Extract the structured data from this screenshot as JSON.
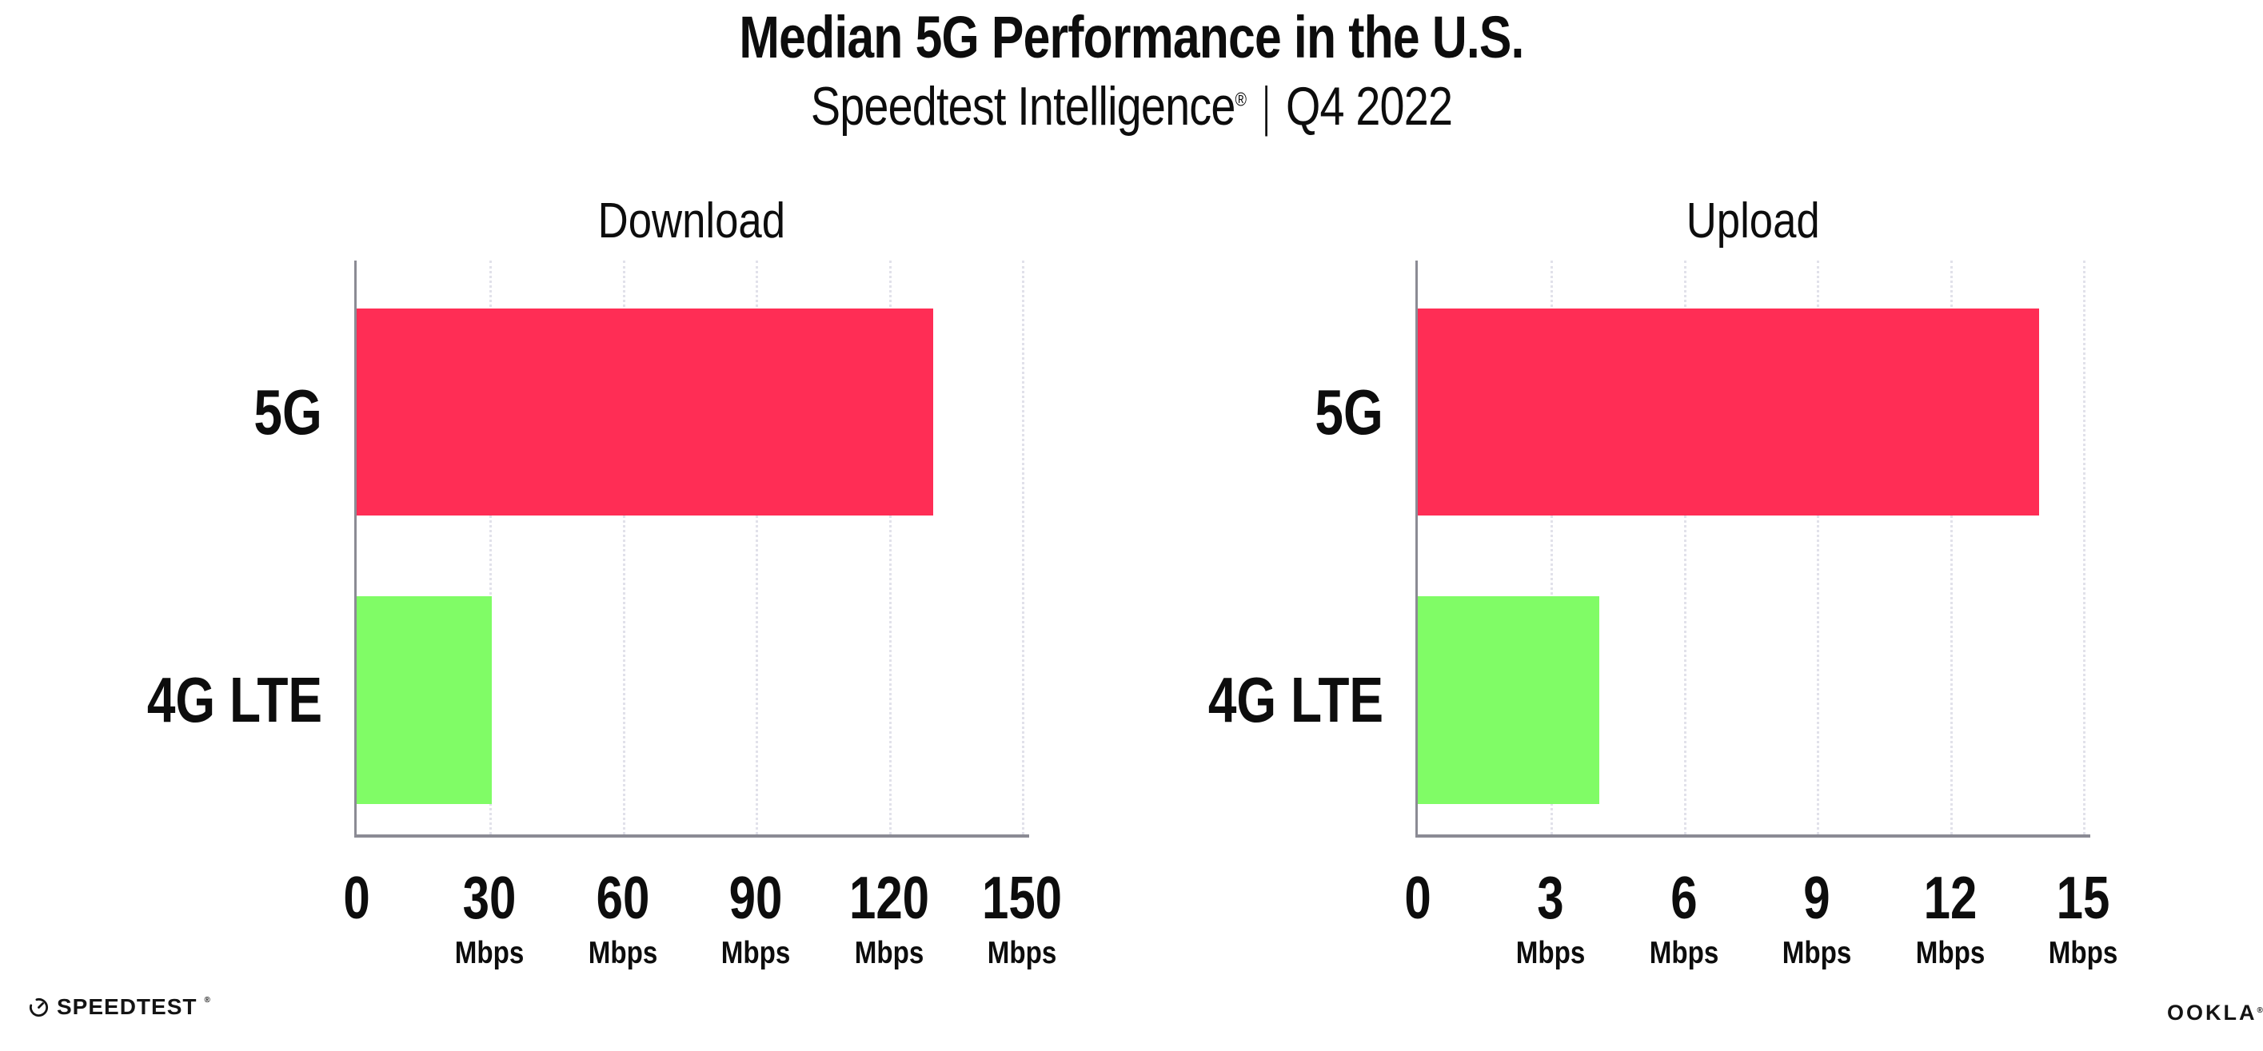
{
  "title": "Median 5G Performance in the U.S.",
  "subtitle": {
    "brand": "Speedtest Intelligence",
    "registered_mark": "®",
    "separator": "|",
    "period": "Q4 2022"
  },
  "chart_data": [
    {
      "type": "bar",
      "orientation": "horizontal",
      "title": "Download",
      "categories": [
        "5G",
        "4G LTE"
      ],
      "values": [
        130,
        30.5
      ],
      "unit": "Mbps",
      "xticks": [
        0,
        30,
        60,
        90,
        120,
        150
      ],
      "xlim": [
        0,
        150
      ],
      "bar_colors": [
        "#FF2D55",
        "#80FC66"
      ],
      "grid": "dotted-vertical",
      "legend": "none"
    },
    {
      "type": "bar",
      "orientation": "horizontal",
      "title": "Upload",
      "categories": [
        "5G",
        "4G LTE"
      ],
      "values": [
        14,
        4.1
      ],
      "unit": "Mbps",
      "xticks": [
        0,
        3,
        6,
        9,
        12,
        15
      ],
      "xlim": [
        0,
        15
      ],
      "bar_colors": [
        "#FF2D55",
        "#80FC66"
      ],
      "grid": "dotted-vertical",
      "legend": "none"
    }
  ],
  "colors": {
    "bar_5g": "#FF2D55",
    "bar_4g_lte": "#80FC66",
    "axis": "#8b8b94",
    "gridline": "#e1e1ea",
    "text": "#0d0d0d",
    "background": "#ffffff"
  },
  "footer": {
    "speedtest_label": "SPEEDTEST",
    "speedtest_mark": "®",
    "ookla_label": "OOKLA",
    "ookla_mark": "®"
  }
}
